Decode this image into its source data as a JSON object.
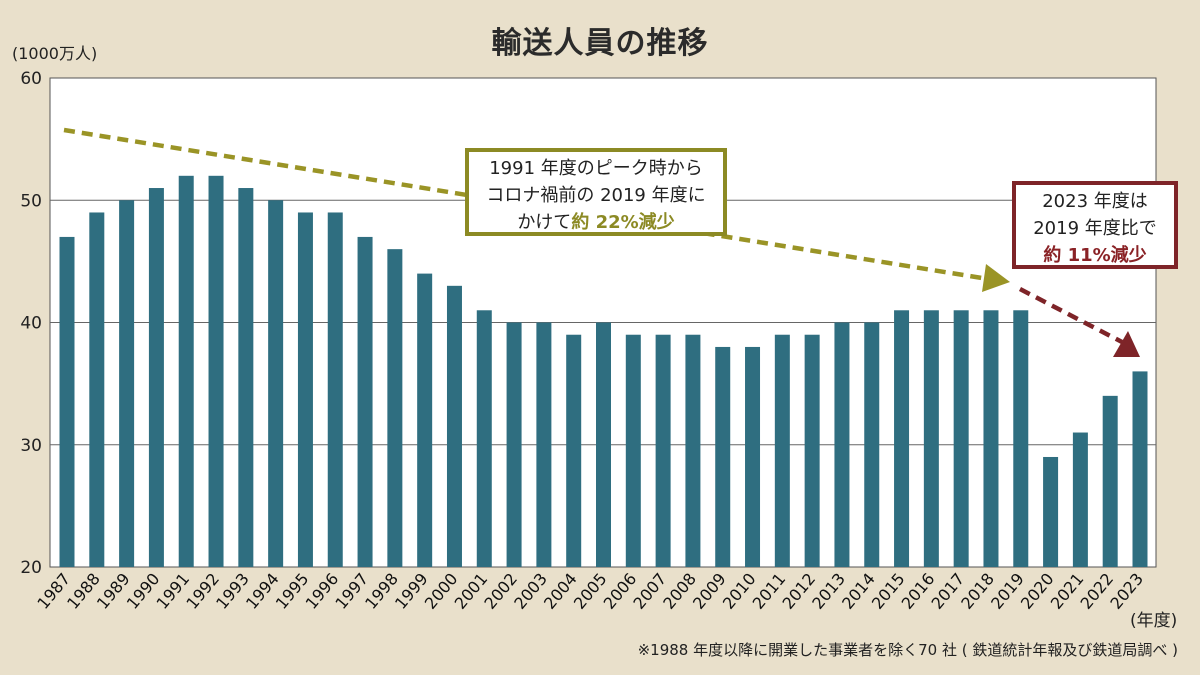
{
  "header": {
    "title": "輸送人員の推移",
    "y_unit": "(1000万人)",
    "x_unit": "(年度)"
  },
  "footnote": "※1988 年度以降に開業した事業者を除く70 社 ( 鉄道統計年報及び鉄道局調べ )",
  "callouts": {
    "peak": {
      "line1": "1991 年度のピーク時から",
      "line2": "コロナ禍前の 2019 年度に",
      "line3_prefix": "かけて",
      "line3_highlight": "約 22%減少"
    },
    "recent": {
      "line1": "2023 年度は",
      "line2": "2019 年度比で",
      "line3_highlight": "約 11%減少"
    }
  },
  "colors": {
    "bar": "#2f6e80",
    "background": "#e9e0cb",
    "plot_background": "#ffffff",
    "trend_arrow_long": "#9a9426",
    "trend_arrow_short": "#7e2428"
  },
  "chart_data": {
    "type": "bar",
    "categories": [
      "1987",
      "1988",
      "1989",
      "1990",
      "1991",
      "1992",
      "1993",
      "1994",
      "1995",
      "1996",
      "1997",
      "1998",
      "1999",
      "2000",
      "2001",
      "2002",
      "2003",
      "2004",
      "2005",
      "2006",
      "2007",
      "2008",
      "2009",
      "2010",
      "2011",
      "2012",
      "2013",
      "2014",
      "2015",
      "2016",
      "2017",
      "2018",
      "2019",
      "2020",
      "2021",
      "2022",
      "2023"
    ],
    "values": [
      47,
      49,
      50,
      51,
      52,
      52,
      51,
      50,
      49,
      49,
      47,
      46,
      44,
      43,
      41,
      40,
      40,
      39,
      40,
      39,
      39,
      39,
      38,
      38,
      39,
      39,
      40,
      40,
      41,
      41,
      41,
      41,
      41,
      29,
      31,
      34,
      36
    ],
    "ylim": [
      20,
      60
    ],
    "yticks": [
      20,
      30,
      40,
      50,
      60
    ],
    "grid": true,
    "title": "輸送人員の推移",
    "ylabel": "(1000万人)",
    "xlabel": "(年度)"
  }
}
